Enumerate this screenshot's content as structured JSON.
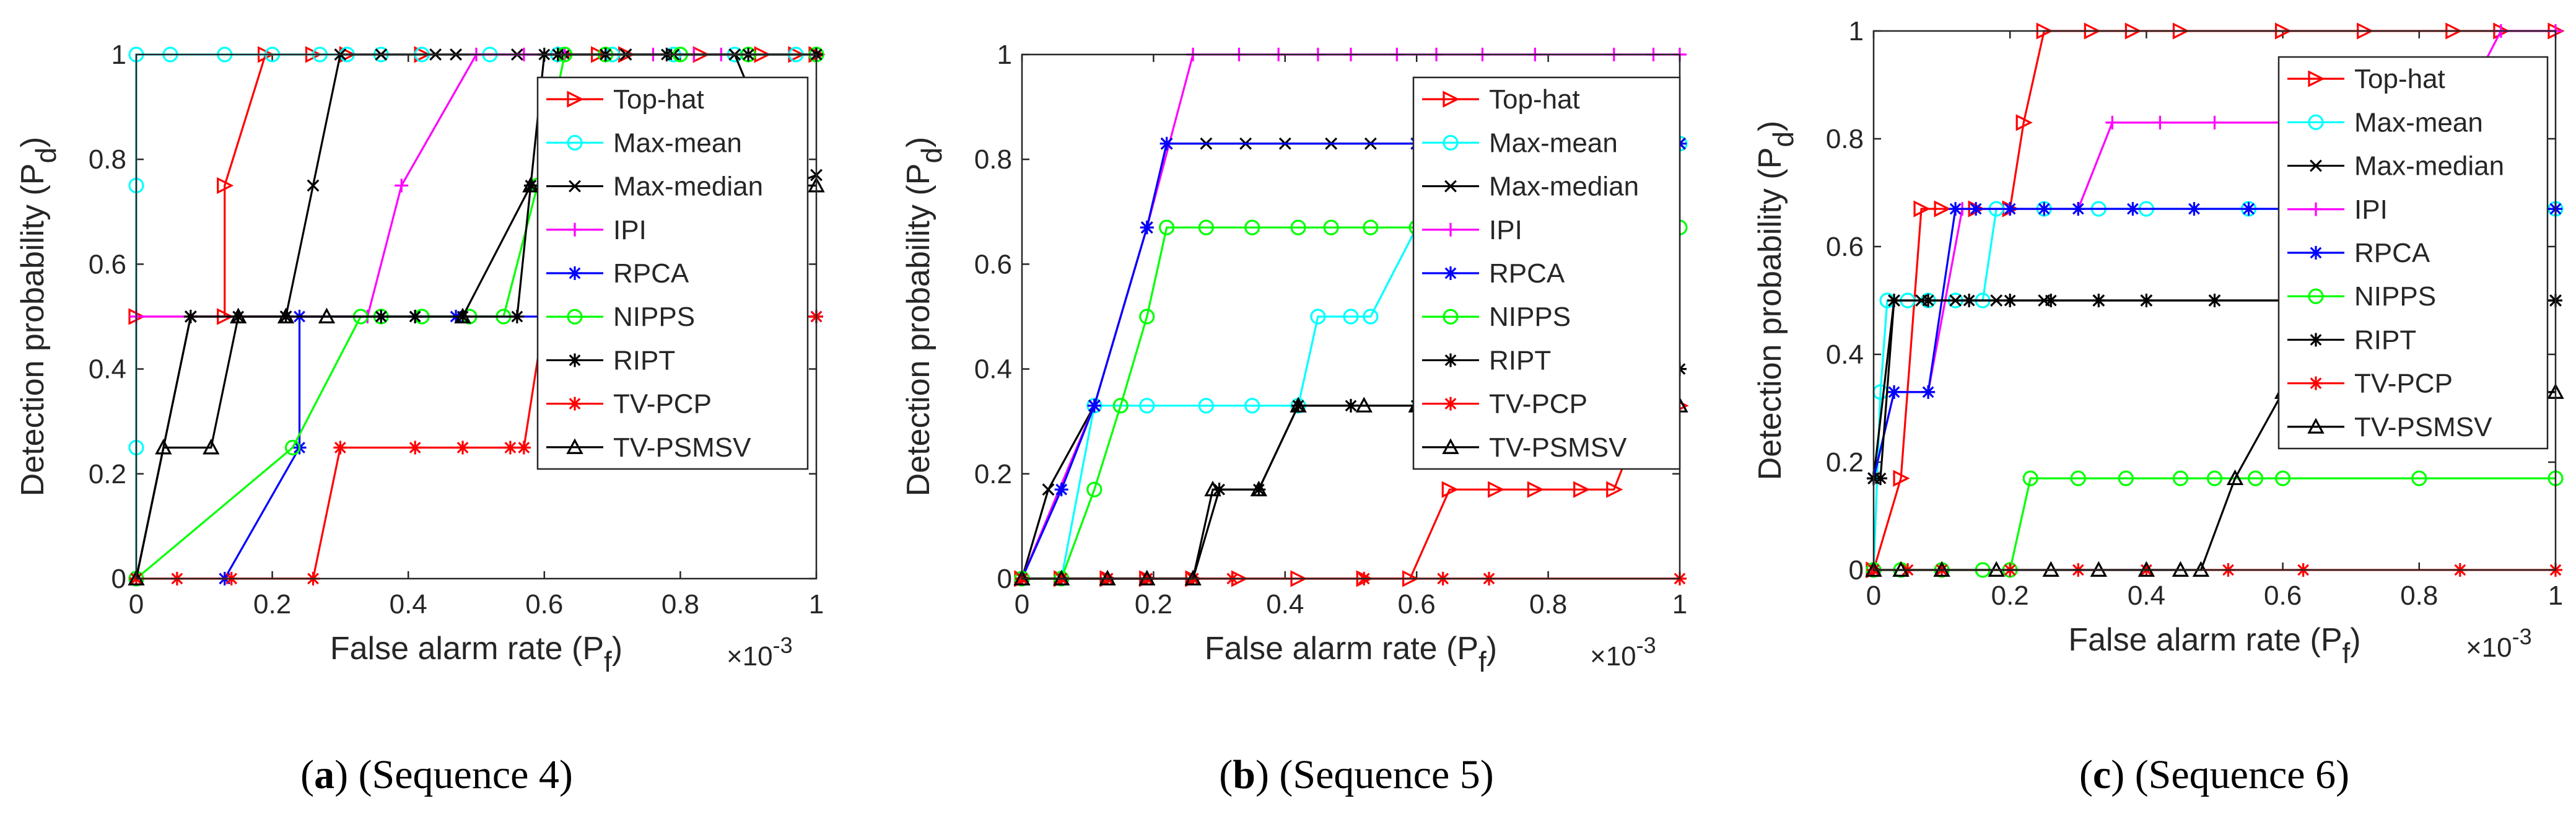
{
  "chart_data": [
    {
      "type": "line",
      "title": "",
      "caption_letter": "a",
      "caption_rest": "(Sequence 4)",
      "xlabel": "False alarm rate (P",
      "xlabel_sub": "f",
      "xlabel_end": ")",
      "ylabel": "Detection probability (P",
      "ylabel_sub": "d",
      "ylabel_end": ")",
      "x_exponent": "×10",
      "x_exponent_power": "-3",
      "xlim": [
        0,
        1
      ],
      "ylim": [
        0,
        1
      ],
      "xticks": [
        0,
        0.2,
        0.4,
        0.6,
        0.8,
        1
      ],
      "yticks": [
        0,
        0.2,
        0.4,
        0.6,
        0.8,
        1
      ],
      "xtick_labels": [
        "0",
        "0.2",
        "0.4",
        "0.6",
        "0.8",
        "1"
      ],
      "ytick_labels": [
        "0",
        "0.2",
        "0.4",
        "0.6",
        "0.8",
        "1"
      ],
      "legend_position": "right",
      "series": [
        {
          "name": "Top-hat",
          "color": "#ff0000",
          "marker": "triangle-right",
          "x": [
            0,
            0.13,
            0.13,
            0.19,
            0.26,
            0.31,
            0.42,
            0.63,
            0.68,
            0.72,
            0.83,
            0.92,
            0.97,
            1.0
          ],
          "y": [
            0.5,
            0.5,
            0.75,
            1,
            1,
            1,
            1,
            1,
            1,
            1,
            1,
            1,
            1,
            1
          ]
        },
        {
          "name": "Max-mean",
          "color": "#00ffff",
          "marker": "circle",
          "x": [
            0,
            0,
            0,
            0,
            0.05,
            0.13,
            0.2,
            0.27,
            0.31,
            0.36,
            0.42,
            0.52,
            0.62,
            0.7,
            0.79,
            0.88,
            0.97,
            1.0
          ],
          "y": [
            0,
            0.25,
            0.75,
            1,
            1,
            1,
            1,
            1,
            1,
            1,
            1,
            1,
            1,
            1,
            1,
            1,
            1,
            1
          ]
        },
        {
          "name": "Max-median",
          "color": "#000000",
          "marker": "x",
          "x": [
            0,
            0.08,
            0.22,
            0.26,
            0.3,
            0.36,
            0.44,
            0.47,
            0.56,
            0.63,
            0.72,
            0.79,
            0.88,
            0.96,
            1.0
          ],
          "y": [
            0,
            0.5,
            0.5,
            0.75,
            1,
            1,
            1,
            1,
            1,
            1,
            1,
            1,
            1,
            0.75,
            0.77
          ]
        },
        {
          "name": "IPI",
          "color": "#ff00ff",
          "marker": "plus",
          "x": [
            0,
            0.34,
            0.39,
            0.5,
            0.57,
            0.63,
            0.69,
            0.76,
            0.82,
            0.86,
            1.0
          ],
          "y": [
            0.5,
            0.5,
            0.75,
            1,
            1,
            1,
            1,
            1,
            1,
            1,
            1
          ]
        },
        {
          "name": "RPCA",
          "color": "#0000ff",
          "marker": "asterisk",
          "x": [
            0.13,
            0.24,
            0.24,
            0.36,
            0.41,
            0.47,
            0.62,
            1.0
          ],
          "y": [
            0,
            0.25,
            0.5,
            0.5,
            0.5,
            0.5,
            0.5,
            0.5
          ]
        },
        {
          "name": "NIPPS",
          "color": "#00ff00",
          "marker": "circle",
          "x": [
            0,
            0.23,
            0.33,
            0.36,
            0.42,
            0.49,
            0.54,
            0.59,
            0.63,
            0.69,
            0.8,
            0.9,
            1.0
          ],
          "y": [
            0,
            0.25,
            0.5,
            0.5,
            0.5,
            0.5,
            0.5,
            0.75,
            1,
            1,
            1,
            1,
            1
          ]
        },
        {
          "name": "RIPT",
          "color": "#000000",
          "marker": "asterisk",
          "x": [
            0,
            0.08,
            0.15,
            0.22,
            0.36,
            0.41,
            0.48,
            0.56,
            0.58,
            0.6,
            0.62,
            0.69,
            0.78,
            0.9,
            1.0
          ],
          "y": [
            0,
            0.5,
            0.5,
            0.5,
            0.5,
            0.5,
            0.5,
            0.5,
            0.75,
            1,
            1,
            1,
            1,
            1,
            1
          ]
        },
        {
          "name": "TV-PCP",
          "color": "#ff0000",
          "marker": "asterisk",
          "x": [
            0,
            0.06,
            0.14,
            0.26,
            0.3,
            0.41,
            0.48,
            0.55,
            0.57,
            0.6,
            0.63,
            1.0
          ],
          "y": [
            0,
            0,
            0,
            0,
            0.25,
            0.25,
            0.25,
            0.25,
            0.25,
            0.5,
            0.5,
            0.5
          ]
        },
        {
          "name": "TV-PSMSV",
          "color": "#000000",
          "marker": "triangle-up",
          "x": [
            0,
            0.04,
            0.11,
            0.15,
            0.22,
            0.28,
            0.48,
            0.58,
            0.61,
            0.7,
            0.8,
            0.9,
            1.0
          ],
          "y": [
            0,
            0.25,
            0.25,
            0.5,
            0.5,
            0.5,
            0.5,
            0.75,
            0.75,
            0.75,
            0.75,
            0.75,
            0.75
          ]
        }
      ]
    },
    {
      "type": "line",
      "title": "",
      "caption_letter": "b",
      "caption_rest": "(Sequence 5)",
      "xlabel": "False alarm rate (P",
      "xlabel_sub": "f",
      "xlabel_end": ")",
      "ylabel": "Detection probability (P",
      "ylabel_sub": "d",
      "ylabel_end": ")",
      "x_exponent": "×10",
      "x_exponent_power": "-3",
      "xlim": [
        0,
        1
      ],
      "ylim": [
        0,
        1
      ],
      "xticks": [
        0,
        0.2,
        0.4,
        0.6,
        0.8,
        1
      ],
      "yticks": [
        0,
        0.2,
        0.4,
        0.6,
        0.8,
        1
      ],
      "xtick_labels": [
        "0",
        "0.2",
        "0.4",
        "0.6",
        "0.8",
        "1"
      ],
      "ytick_labels": [
        "0",
        "0.2",
        "0.4",
        "0.6",
        "0.8",
        "1"
      ],
      "legend_position": "right",
      "series": [
        {
          "name": "Top-hat",
          "color": "#ff0000",
          "marker": "triangle-right",
          "x": [
            0,
            0.06,
            0.13,
            0.19,
            0.26,
            0.33,
            0.42,
            0.52,
            0.59,
            0.65,
            0.72,
            0.78,
            0.85,
            0.9,
            0.95,
            1.0
          ],
          "y": [
            0,
            0,
            0,
            0,
            0,
            0,
            0,
            0,
            0,
            0.17,
            0.17,
            0.17,
            0.17,
            0.17,
            0.33,
            0.33
          ]
        },
        {
          "name": "Max-mean",
          "color": "#00ffff",
          "marker": "circle",
          "x": [
            0,
            0.06,
            0.11,
            0.19,
            0.28,
            0.35,
            0.42,
            0.45,
            0.5,
            0.53,
            0.6,
            0.7,
            0.8,
            0.9,
            1.0
          ],
          "y": [
            0,
            0,
            0.33,
            0.33,
            0.33,
            0.33,
            0.33,
            0.5,
            0.5,
            0.5,
            0.67,
            0.83,
            0.83,
            0.83,
            0.83
          ]
        },
        {
          "name": "Max-median",
          "color": "#000000",
          "marker": "x",
          "x": [
            0,
            0.04,
            0.11,
            0.19,
            0.22,
            0.28,
            0.34,
            0.4,
            0.47,
            0.53,
            0.6,
            0.75,
            0.9,
            1.0
          ],
          "y": [
            0,
            0.17,
            0.33,
            0.67,
            0.83,
            0.83,
            0.83,
            0.83,
            0.83,
            0.83,
            0.83,
            0.83,
            0.83,
            0.83
          ]
        },
        {
          "name": "IPI",
          "color": "#ff00ff",
          "marker": "plus",
          "x": [
            0,
            0.11,
            0.19,
            0.26,
            0.33,
            0.39,
            0.45,
            0.5,
            0.57,
            0.63,
            0.7,
            0.78,
            0.9,
            0.96,
            1.0
          ],
          "y": [
            0,
            0.33,
            0.67,
            1,
            1,
            1,
            1,
            1,
            1,
            1,
            1,
            1,
            1,
            1,
            1
          ]
        },
        {
          "name": "RPCA",
          "color": "#0000ff",
          "marker": "asterisk",
          "x": [
            0,
            0.06,
            0.11,
            0.19,
            0.22,
            0.6,
            0.8,
            1.0
          ],
          "y": [
            0,
            0.17,
            0.33,
            0.67,
            0.83,
            0.83,
            0.83,
            0.83
          ]
        },
        {
          "name": "NIPPS",
          "color": "#00ff00",
          "marker": "circle",
          "x": [
            0,
            0.06,
            0.11,
            0.15,
            0.19,
            0.22,
            0.28,
            0.35,
            0.42,
            0.47,
            0.53,
            0.6,
            0.7,
            0.85,
            1.0
          ],
          "y": [
            0,
            0,
            0.17,
            0.33,
            0.5,
            0.67,
            0.67,
            0.67,
            0.67,
            0.67,
            0.67,
            0.67,
            0.67,
            0.67,
            0.67
          ]
        },
        {
          "name": "RIPT",
          "color": "#000000",
          "marker": "asterisk",
          "x": [
            0,
            0.06,
            0.13,
            0.19,
            0.26,
            0.3,
            0.36,
            0.42,
            0.5,
            0.6,
            0.75,
            0.9,
            1.0
          ],
          "y": [
            0,
            0,
            0,
            0,
            0,
            0.17,
            0.17,
            0.33,
            0.33,
            0.33,
            0.33,
            0.33,
            0.4
          ]
        },
        {
          "name": "TV-PCP",
          "color": "#ff0000",
          "marker": "asterisk",
          "x": [
            0,
            0.06,
            0.13,
            0.19,
            0.26,
            0.32,
            0.52,
            0.64,
            0.71,
            1.0
          ],
          "y": [
            0,
            0,
            0,
            0,
            0,
            0,
            0,
            0,
            0,
            0
          ]
        },
        {
          "name": "TV-PSMSV",
          "color": "#000000",
          "marker": "triangle-up",
          "x": [
            0,
            0.06,
            0.13,
            0.19,
            0.26,
            0.29,
            0.36,
            0.42,
            0.52,
            0.6,
            0.75,
            0.9,
            1.0
          ],
          "y": [
            0,
            0,
            0,
            0,
            0,
            0.17,
            0.17,
            0.33,
            0.33,
            0.33,
            0.33,
            0.33,
            0.33
          ]
        }
      ]
    },
    {
      "type": "line",
      "title": "",
      "caption_letter": "c",
      "caption_rest": "(Sequence 6)",
      "xlabel": "False alarm rate (P",
      "xlabel_sub": "f",
      "xlabel_end": ")",
      "ylabel": "Detection probability (P",
      "ylabel_sub": "d",
      "ylabel_end": ")",
      "x_exponent": "×10",
      "x_exponent_power": "-3",
      "xlim": [
        0,
        1
      ],
      "ylim": [
        0,
        1
      ],
      "xticks": [
        0,
        0.2,
        0.4,
        0.6,
        0.8,
        1
      ],
      "yticks": [
        0,
        0.2,
        0.4,
        0.6,
        0.8,
        1
      ],
      "xtick_labels": [
        "0",
        "0.2",
        "0.4",
        "0.6",
        "0.8",
        "1"
      ],
      "ytick_labels": [
        "0",
        "0.2",
        "0.4",
        "0.6",
        "0.8",
        "1"
      ],
      "legend_position": "right",
      "series": [
        {
          "name": "Top-hat",
          "color": "#ff0000",
          "marker": "triangle-right",
          "x": [
            0,
            0.04,
            0.07,
            0.1,
            0.15,
            0.2,
            0.22,
            0.25,
            0.32,
            0.38,
            0.45,
            0.6,
            0.72,
            0.85,
            0.92,
            1.0
          ],
          "y": [
            0,
            0.17,
            0.67,
            0.67,
            0.67,
            0.67,
            0.83,
            1,
            1,
            1,
            1,
            1,
            1,
            1,
            1,
            1
          ]
        },
        {
          "name": "Max-mean",
          "color": "#00ffff",
          "marker": "circle",
          "x": [
            0,
            0.01,
            0.02,
            0.05,
            0.08,
            0.12,
            0.16,
            0.18,
            0.25,
            0.33,
            0.4,
            0.55,
            0.7,
            0.85,
            1.0
          ],
          "y": [
            0,
            0.33,
            0.5,
            0.5,
            0.5,
            0.5,
            0.5,
            0.67,
            0.67,
            0.67,
            0.67,
            0.67,
            0.67,
            0.67,
            0.67
          ]
        },
        {
          "name": "Max-median",
          "color": "#000000",
          "marker": "x",
          "x": [
            0,
            0.03,
            0.07,
            0.12,
            0.18,
            0.25,
            0.33,
            0.4,
            0.5,
            0.65,
            0.8,
            0.9,
            1.0
          ],
          "y": [
            0.17,
            0.5,
            0.5,
            0.5,
            0.5,
            0.5,
            0.5,
            0.5,
            0.5,
            0.5,
            0.5,
            0.5,
            0.5
          ]
        },
        {
          "name": "IPI",
          "color": "#ff00ff",
          "marker": "plus",
          "x": [
            0,
            0.03,
            0.08,
            0.13,
            0.2,
            0.3,
            0.35,
            0.42,
            0.5,
            0.6,
            0.7,
            0.85,
            0.92,
            1.0
          ],
          "y": [
            0.17,
            0.33,
            0.33,
            0.67,
            0.67,
            0.67,
            0.83,
            0.83,
            0.83,
            0.83,
            0.83,
            0.83,
            1,
            1
          ]
        },
        {
          "name": "RPCA",
          "color": "#0000ff",
          "marker": "asterisk",
          "x": [
            0,
            0.03,
            0.08,
            0.12,
            0.15,
            0.2,
            0.25,
            0.3,
            0.38,
            0.47,
            0.55,
            0.65,
            0.8,
            1.0
          ],
          "y": [
            0.17,
            0.33,
            0.33,
            0.67,
            0.67,
            0.67,
            0.67,
            0.67,
            0.67,
            0.67,
            0.67,
            0.67,
            0.67,
            0.67
          ]
        },
        {
          "name": "NIPPS",
          "color": "#00ff00",
          "marker": "circle",
          "x": [
            0,
            0.04,
            0.1,
            0.16,
            0.2,
            0.23,
            0.3,
            0.37,
            0.45,
            0.5,
            0.56,
            0.6,
            0.8,
            1.0
          ],
          "y": [
            0,
            0,
            0,
            0,
            0,
            0.17,
            0.17,
            0.17,
            0.17,
            0.17,
            0.17,
            0.17,
            0.17,
            0.17
          ]
        },
        {
          "name": "RIPT",
          "color": "#000000",
          "marker": "asterisk",
          "x": [
            0,
            0.01,
            0.03,
            0.08,
            0.14,
            0.2,
            0.26,
            0.33,
            0.4,
            0.5,
            0.7,
            1.0
          ],
          "y": [
            0.17,
            0.17,
            0.5,
            0.5,
            0.5,
            0.5,
            0.5,
            0.5,
            0.5,
            0.5,
            0.5,
            0.5
          ]
        },
        {
          "name": "TV-PCP",
          "color": "#ff0000",
          "marker": "asterisk",
          "x": [
            0,
            0.05,
            0.1,
            0.2,
            0.3,
            0.4,
            0.52,
            0.63,
            0.86,
            1.0
          ],
          "y": [
            0,
            0,
            0,
            0,
            0,
            0,
            0,
            0,
            0,
            0
          ]
        },
        {
          "name": "TV-PSMSV",
          "color": "#000000",
          "marker": "triangle-up",
          "x": [
            0,
            0.04,
            0.1,
            0.18,
            0.26,
            0.33,
            0.4,
            0.45,
            0.48,
            0.53,
            0.6,
            0.8,
            1.0
          ],
          "y": [
            0,
            0,
            0,
            0,
            0,
            0,
            0,
            0,
            0,
            0.17,
            0.33,
            0.33,
            0.33
          ]
        }
      ]
    }
  ]
}
